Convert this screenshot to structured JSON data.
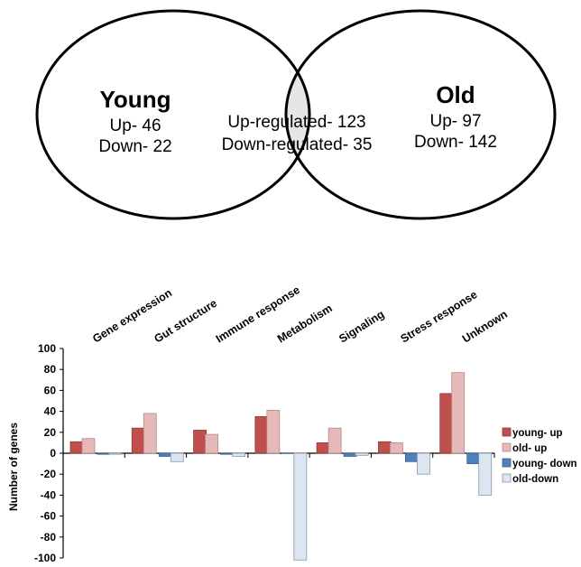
{
  "venn": {
    "young": {
      "title": "Young",
      "up": "Up- 46",
      "down": "Down- 22"
    },
    "overlap": {
      "up": "Up-regulated- 123",
      "down": "Down-regulated- 35"
    },
    "old": {
      "title": "Old",
      "up": "Up- 97",
      "down": "Down- 142"
    }
  },
  "colors": {
    "young_up": "#c0504d",
    "old_up": "#e6b9b8",
    "young_down": "#4f81bd",
    "old_down": "#dce6f2",
    "overlap_fill": "#e6e6e6"
  },
  "chart_data": {
    "type": "bar",
    "categories": [
      "Gene expression",
      "Gut structure",
      "Immune response",
      "Metabolism",
      "Signaling",
      "Stress response",
      "Unknown"
    ],
    "series": [
      {
        "name": "young- up",
        "values": [
          11,
          24,
          22,
          35,
          10,
          11,
          57
        ]
      },
      {
        "name": "old- up",
        "values": [
          14,
          38,
          18,
          41,
          24,
          10,
          77
        ]
      },
      {
        "name": "young- down",
        "values": [
          -1,
          -3,
          -1,
          0,
          -3,
          -8,
          -10
        ]
      },
      {
        "name": "old-down",
        "values": [
          -1,
          -8,
          -3,
          -102,
          -2,
          -20,
          -40
        ]
      }
    ],
    "ylabel": "Number of genes",
    "ylim": [
      -100,
      100
    ],
    "yticks": [
      "100",
      "80",
      "60",
      "40",
      "20",
      "0",
      "-20",
      "-40",
      "-60",
      "-80",
      "-100"
    ],
    "legend_position": "right"
  }
}
